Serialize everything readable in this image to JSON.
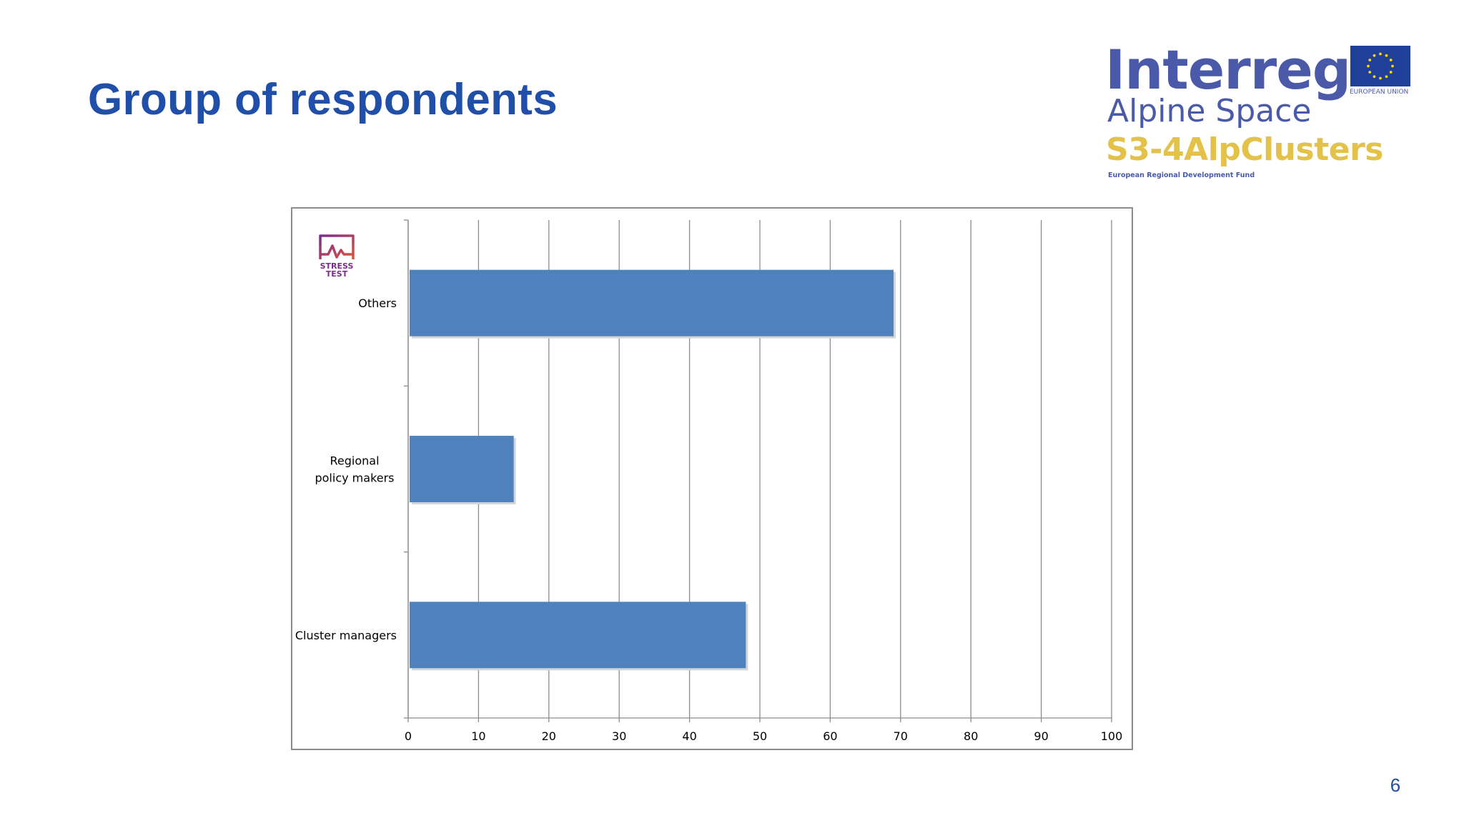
{
  "slide": {
    "title": "Group of respondents",
    "page_number": "6"
  },
  "logo": {
    "program": "Interreg",
    "region": "Alpine Space",
    "project": "S3-4AlpClusters",
    "fund": "European Regional Development Fund",
    "eu_label": "EUROPEAN UNION",
    "stress_test_line1": "STRESS",
    "stress_test_line2": "TEST"
  },
  "colors": {
    "title": "#1f4fa8",
    "bar": "#4f81bd",
    "grid": "#8c8c8c",
    "logo_blue": "#4a5aa8",
    "logo_gold": "#e4c24a",
    "eu_blue": "#1f3f99",
    "eu_star": "#ffd600",
    "stress_grad_start": "#7b2d8e",
    "stress_grad_end": "#e0533a"
  },
  "chart_data": {
    "type": "bar",
    "orientation": "horizontal",
    "title": "",
    "xlabel": "",
    "ylabel": "",
    "categories": [
      {
        "label_lines": [
          "Others"
        ],
        "value": 69
      },
      {
        "label_lines": [
          "Regional",
          "policy makers"
        ],
        "value": 15
      },
      {
        "label_lines": [
          "Cluster managers"
        ],
        "value": 48
      }
    ],
    "xlim": [
      0,
      100
    ],
    "xticks": [
      0,
      10,
      20,
      30,
      40,
      50,
      60,
      70,
      80,
      90,
      100
    ],
    "grid": "vertical",
    "legend": "none"
  }
}
